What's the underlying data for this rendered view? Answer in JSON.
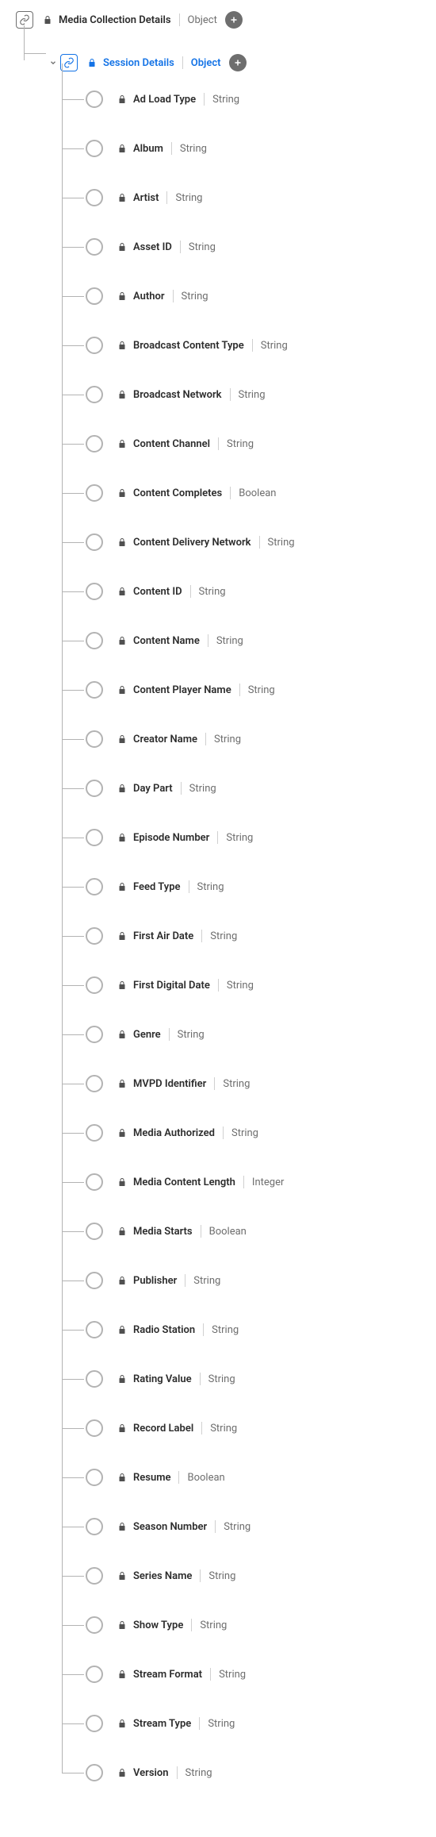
{
  "root": {
    "label": "Media Collection Details",
    "type": "Object"
  },
  "child": {
    "label": "Session Details",
    "type": "Object",
    "selected": true
  },
  "leaves": [
    {
      "label": "Ad Load Type",
      "type": "String"
    },
    {
      "label": "Album",
      "type": "String"
    },
    {
      "label": "Artist",
      "type": "String"
    },
    {
      "label": "Asset ID",
      "type": "String"
    },
    {
      "label": "Author",
      "type": "String"
    },
    {
      "label": "Broadcast Content Type",
      "type": "String"
    },
    {
      "label": "Broadcast Network",
      "type": "String"
    },
    {
      "label": "Content Channel",
      "type": "String"
    },
    {
      "label": "Content Completes",
      "type": "Boolean"
    },
    {
      "label": "Content Delivery Network",
      "type": "String"
    },
    {
      "label": "Content ID",
      "type": "String"
    },
    {
      "label": "Content Name",
      "type": "String"
    },
    {
      "label": "Content Player Name",
      "type": "String"
    },
    {
      "label": "Creator Name",
      "type": "String"
    },
    {
      "label": "Day Part",
      "type": "String"
    },
    {
      "label": "Episode Number",
      "type": "String"
    },
    {
      "label": "Feed Type",
      "type": "String"
    },
    {
      "label": "First Air Date",
      "type": "String"
    },
    {
      "label": "First Digital Date",
      "type": "String"
    },
    {
      "label": "Genre",
      "type": "String"
    },
    {
      "label": "MVPD Identifier",
      "type": "String"
    },
    {
      "label": "Media Authorized",
      "type": "String"
    },
    {
      "label": "Media Content Length",
      "type": "Integer"
    },
    {
      "label": "Media Starts",
      "type": "Boolean"
    },
    {
      "label": "Publisher",
      "type": "String"
    },
    {
      "label": "Radio Station",
      "type": "String"
    },
    {
      "label": "Rating Value",
      "type": "String"
    },
    {
      "label": "Record Label",
      "type": "String"
    },
    {
      "label": "Resume",
      "type": "Boolean"
    },
    {
      "label": "Season Number",
      "type": "String"
    },
    {
      "label": "Series Name",
      "type": "String"
    },
    {
      "label": "Show Type",
      "type": "String"
    },
    {
      "label": "Stream Format",
      "type": "String"
    },
    {
      "label": "Stream Type",
      "type": "String"
    },
    {
      "label": "Version",
      "type": "String"
    }
  ]
}
